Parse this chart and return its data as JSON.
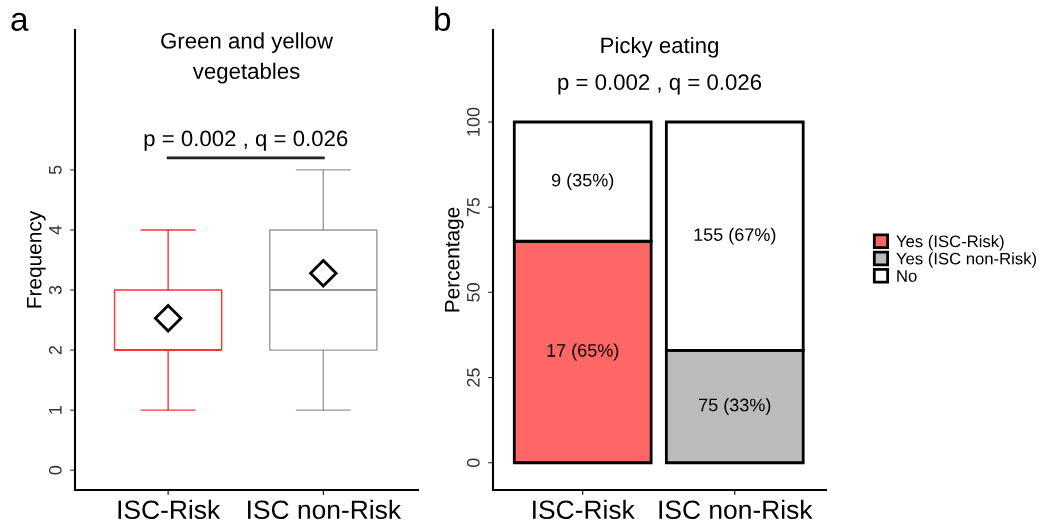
{
  "chart_data": [
    {
      "type": "box",
      "title": "Green and yellow vegetables",
      "ylabel": "Frequency",
      "categories": [
        "ISC-Risk",
        "ISC non-Risk"
      ],
      "boxes": [
        {
          "low": 1,
          "q1": 2,
          "median": 2,
          "q3": 3,
          "high": 4,
          "mean": 2.53
        },
        {
          "low": 1,
          "q1": 2,
          "median": 3,
          "q3": 4,
          "high": 5,
          "mean": 3.28
        }
      ],
      "colors": [
        "#ff3333",
        "#999999"
      ],
      "marker": "diamond",
      "ylim": [
        -0.33,
        7.33
      ],
      "yticks": [
        0,
        1,
        2,
        3,
        4,
        5
      ],
      "annotations": [
        "a",
        "p = 0.002 , q = 0.026"
      ]
    },
    {
      "type": "bar",
      "stacked": true,
      "title": "Picky eating",
      "subtitle": "p = 0.002 , q = 0.026",
      "ylabel": "Percentage",
      "categories": [
        "ISC-Risk",
        "ISC non-Risk"
      ],
      "series": [
        {
          "name": "Yes (ISC-Risk)",
          "color": "#ff6666",
          "values": [
            65,
            null
          ],
          "value_labels": [
            "17 (65%)",
            null
          ]
        },
        {
          "name": "Yes (ISC non-Risk)",
          "color": "#bbbbbb",
          "values": [
            null,
            33
          ],
          "value_labels": [
            null,
            "75 (33%)"
          ]
        },
        {
          "name": "No",
          "color": "#ffffff",
          "values": [
            35,
            67
          ],
          "value_labels": [
            "9 (35%)",
            "155 (67%)"
          ]
        }
      ],
      "ylim": [
        -8,
        127
      ],
      "yticks": [
        0,
        25,
        50,
        75,
        100
      ],
      "legend": "right",
      "annotations": [
        "b"
      ]
    }
  ]
}
